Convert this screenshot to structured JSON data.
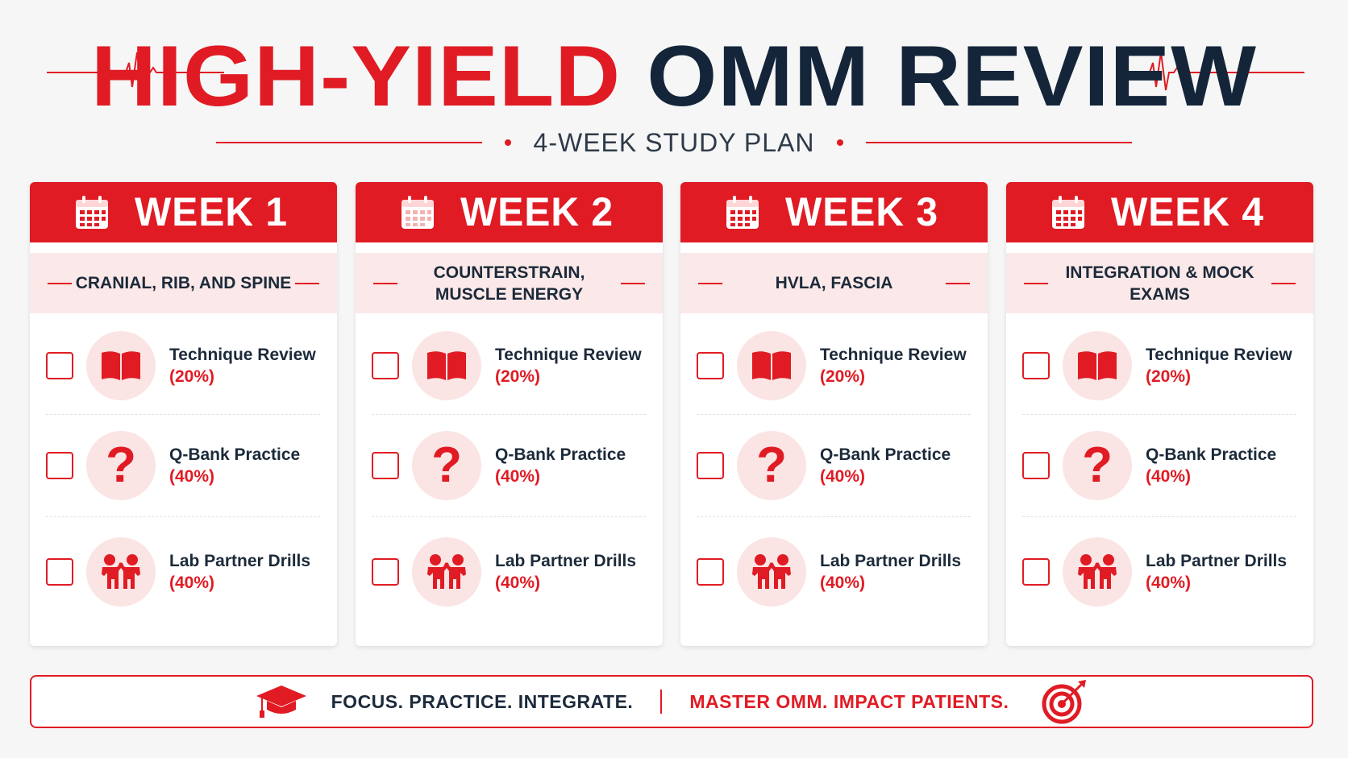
{
  "header": {
    "title_red": "HIGH-YIELD",
    "title_dark": "OMM REVIEW",
    "subtitle": "4-WEEK STUDY PLAN"
  },
  "colors": {
    "accent": "#e01b24",
    "dark": "#14253a",
    "tint": "#fbe8e8"
  },
  "weeks": [
    {
      "label": "WEEK 1",
      "topic": "CRANIAL, RIB, AND SPINE",
      "tasks": [
        {
          "name": "Technique Review",
          "pct": "(20%)",
          "icon": "book-icon"
        },
        {
          "name": "Q-Bank Practice",
          "pct": "(40%)",
          "icon": "question-icon"
        },
        {
          "name": "Lab Partner Drills",
          "pct": "(40%)",
          "icon": "partners-icon"
        }
      ]
    },
    {
      "label": "WEEK 2",
      "topic": "COUNTERSTRAIN, MUSCLE ENERGY",
      "tasks": [
        {
          "name": "Technique Review",
          "pct": "(20%)",
          "icon": "book-icon"
        },
        {
          "name": "Q-Bank Practice",
          "pct": "(40%)",
          "icon": "question-icon"
        },
        {
          "name": "Lab Partner Drills",
          "pct": "(40%)",
          "icon": "partners-icon"
        }
      ]
    },
    {
      "label": "WEEK 3",
      "topic": "HVLA, FASCIA",
      "tasks": [
        {
          "name": "Technique Review",
          "pct": "(20%)",
          "icon": "book-icon"
        },
        {
          "name": "Q-Bank Practice",
          "pct": "(40%)",
          "icon": "question-icon"
        },
        {
          "name": "Lab Partner Drills",
          "pct": "(40%)",
          "icon": "partners-icon"
        }
      ]
    },
    {
      "label": "WEEK 4",
      "topic": "INTEGRATION & MOCK EXAMS",
      "tasks": [
        {
          "name": "Technique Review",
          "pct": "(20%)",
          "icon": "book-icon"
        },
        {
          "name": "Q-Bank Practice",
          "pct": "(40%)",
          "icon": "question-icon"
        },
        {
          "name": "Lab Partner Drills",
          "pct": "(40%)",
          "icon": "partners-icon"
        }
      ]
    }
  ],
  "footer": {
    "left": "FOCUS. PRACTICE. INTEGRATE.",
    "right": "MASTER OMM. IMPACT PATIENTS.",
    "left_icon": "graduation-cap-icon",
    "right_icon": "target-icon"
  }
}
